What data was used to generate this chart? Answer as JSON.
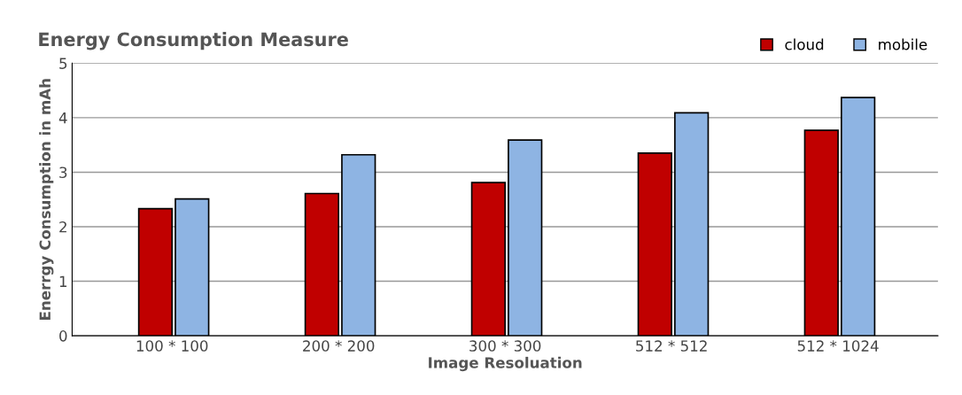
{
  "chart_data": {
    "type": "bar",
    "title": "Energy Consumption Measure",
    "xlabel": "Image Resoluation",
    "ylabel": "Enerrgy Consumption in mAh",
    "categories": [
      "100 * 100",
      "200 * 200",
      "300 * 300",
      "512 * 512",
      "512 * 1024"
    ],
    "series": [
      {
        "name": "cloud",
        "color": "#c00000",
        "values": [
          2.33,
          2.61,
          2.81,
          3.35,
          3.77
        ]
      },
      {
        "name": "mobile",
        "color": "#8eb4e3",
        "values": [
          2.51,
          3.32,
          3.59,
          4.09,
          4.37
        ]
      }
    ],
    "ylim": [
      0,
      5
    ],
    "yticks": [
      0,
      1,
      2,
      3,
      4,
      5
    ],
    "grid": "y",
    "legend": "top right"
  }
}
